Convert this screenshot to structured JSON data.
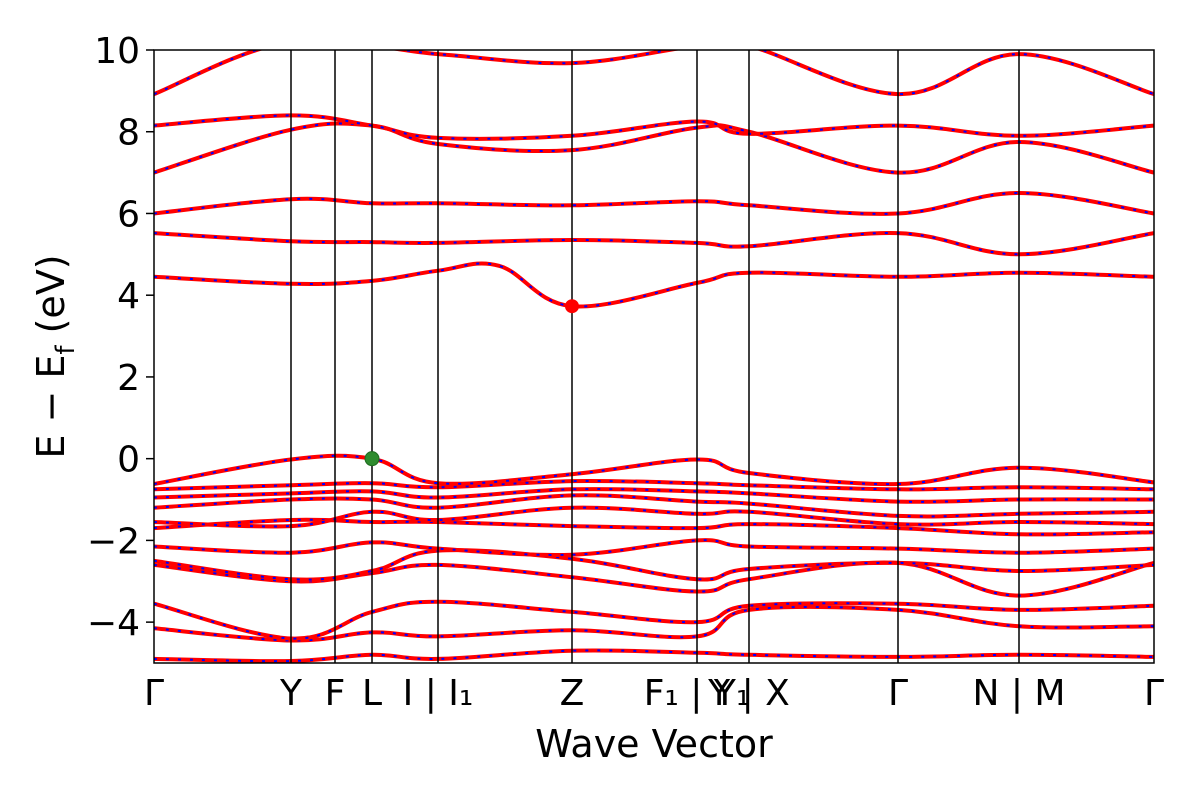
{
  "chart_data": {
    "type": "line",
    "title": "",
    "xlabel": "Wave Vector",
    "ylabel": "E − E_f (eV)",
    "ylim": [
      -5,
      10
    ],
    "yticks": [
      -4,
      -2,
      0,
      2,
      4,
      6,
      8,
      10
    ],
    "ytick_labels": [
      "−4",
      "−2",
      "0",
      "2",
      "4",
      "6",
      "8",
      "10"
    ],
    "x_range": [
      0,
      1
    ],
    "high_symmetry_points": [
      {
        "x": 0.0,
        "label": "Γ"
      },
      {
        "x": 0.137,
        "label": "Y"
      },
      {
        "x": 0.181,
        "label": "F"
      },
      {
        "x": 0.218,
        "label": "L"
      },
      {
        "x": 0.284,
        "label": "I | I₁"
      },
      {
        "x": 0.418,
        "label": "Z"
      },
      {
        "x": 0.543,
        "label": "F₁ | Y₁"
      },
      {
        "x": 0.595,
        "label": "Y | X"
      },
      {
        "x": 0.744,
        "label": "Γ"
      },
      {
        "x": 0.865,
        "label": "N | M"
      },
      {
        "x": 1.0,
        "label": "Γ"
      }
    ],
    "vbm_marker": {
      "x": 0.218,
      "y": 0.0,
      "color": "#2e8b2e"
    },
    "cbm_marker": {
      "x": 0.418,
      "y": 3.73,
      "color": "#ff0000"
    },
    "series": [
      {
        "color": "#ff0000",
        "style": "solid"
      },
      {
        "color": "#0000ff",
        "style": "dotted"
      }
    ],
    "bands": [
      {
        "x": [
          0,
          0.137,
          0.218,
          0.284,
          0.418,
          0.543,
          0.595,
          0.744,
          0.865,
          1.0
        ],
        "y": [
          -4.9,
          -4.95,
          -4.8,
          -4.9,
          -4.7,
          -4.75,
          -4.8,
          -4.85,
          -4.8,
          -4.85
        ]
      },
      {
        "x": [
          0,
          0.137,
          0.218,
          0.284,
          0.418,
          0.543,
          0.595,
          0.744,
          0.865,
          1.0
        ],
        "y": [
          -4.15,
          -4.45,
          -4.25,
          -4.35,
          -4.2,
          -4.35,
          -3.7,
          -3.7,
          -4.1,
          -4.1
        ]
      },
      {
        "x": [
          0,
          0.137,
          0.218,
          0.284,
          0.418,
          0.543,
          0.595,
          0.744,
          0.865,
          1.0
        ],
        "y": [
          -3.55,
          -4.4,
          -3.75,
          -3.5,
          -3.75,
          -4.0,
          -3.6,
          -3.55,
          -3.7,
          -3.6
        ]
      },
      {
        "x": [
          0,
          0.137,
          0.218,
          0.284,
          0.418,
          0.543,
          0.595,
          0.744,
          0.865,
          1.0
        ],
        "y": [
          -2.6,
          -3.0,
          -2.8,
          -2.6,
          -2.9,
          -3.25,
          -2.95,
          -2.55,
          -3.35,
          -2.55
        ]
      },
      {
        "x": [
          0,
          0.137,
          0.218,
          0.284,
          0.418,
          0.543,
          0.595,
          0.744,
          0.865,
          1.0
        ],
        "y": [
          -2.5,
          -2.95,
          -2.75,
          -2.25,
          -2.45,
          -2.95,
          -2.7,
          -2.55,
          -2.75,
          -2.6
        ]
      },
      {
        "x": [
          0,
          0.137,
          0.218,
          0.284,
          0.418,
          0.543,
          0.595,
          0.744,
          0.865,
          1.0
        ],
        "y": [
          -2.15,
          -2.3,
          -2.05,
          -2.2,
          -2.35,
          -2.0,
          -2.15,
          -2.2,
          -2.3,
          -2.2
        ]
      },
      {
        "x": [
          0,
          0.137,
          0.218,
          0.284,
          0.418,
          0.543,
          0.595,
          0.744,
          0.865,
          1.0
        ],
        "y": [
          -1.7,
          -1.5,
          -1.55,
          -1.55,
          -1.65,
          -1.7,
          -1.6,
          -1.7,
          -1.85,
          -1.8
        ]
      },
      {
        "x": [
          0,
          0.137,
          0.218,
          0.284,
          0.418,
          0.543,
          0.595,
          0.744,
          0.865,
          1.0
        ],
        "y": [
          -1.55,
          -1.65,
          -1.3,
          -1.5,
          -1.2,
          -1.35,
          -1.3,
          -1.6,
          -1.55,
          -1.6
        ]
      },
      {
        "x": [
          0,
          0.137,
          0.218,
          0.284,
          0.418,
          0.543,
          0.595,
          0.744,
          0.865,
          1.0
        ],
        "y": [
          -1.2,
          -1.0,
          -1.0,
          -1.2,
          -0.9,
          -1.05,
          -1.1,
          -1.4,
          -1.35,
          -1.3
        ]
      },
      {
        "x": [
          0,
          0.137,
          0.218,
          0.284,
          0.418,
          0.543,
          0.595,
          0.744,
          0.865,
          1.0
        ],
        "y": [
          -0.95,
          -0.85,
          -0.8,
          -0.95,
          -0.75,
          -0.8,
          -0.85,
          -1.05,
          -1.0,
          -1.0
        ]
      },
      {
        "x": [
          0,
          0.137,
          0.218,
          0.284,
          0.418,
          0.543,
          0.595,
          0.744,
          0.865,
          1.0
        ],
        "y": [
          -0.75,
          -0.65,
          -0.6,
          -0.7,
          -0.55,
          -0.6,
          -0.65,
          -0.75,
          -0.7,
          -0.75
        ]
      },
      {
        "x": [
          0,
          0.137,
          0.218,
          0.284,
          0.418,
          0.543,
          0.595,
          0.744,
          0.865,
          1.0
        ],
        "y": [
          -0.62,
          -0.02,
          0.0,
          -0.6,
          -0.38,
          -0.02,
          -0.35,
          -0.62,
          -0.22,
          -0.58
        ]
      },
      {
        "x": [
          0,
          0.137,
          0.218,
          0.284,
          0.345,
          0.418,
          0.543,
          0.595,
          0.744,
          0.865,
          1.0
        ],
        "y": [
          4.45,
          4.28,
          4.35,
          4.6,
          4.72,
          3.73,
          4.3,
          4.55,
          4.45,
          4.55,
          4.45
        ]
      },
      {
        "x": [
          0,
          0.137,
          0.218,
          0.284,
          0.418,
          0.543,
          0.595,
          0.744,
          0.865,
          1.0
        ],
        "y": [
          5.52,
          5.32,
          5.3,
          5.28,
          5.35,
          5.28,
          5.2,
          5.52,
          5.0,
          5.52
        ]
      },
      {
        "x": [
          0,
          0.137,
          0.218,
          0.284,
          0.418,
          0.543,
          0.595,
          0.744,
          0.865,
          1.0
        ],
        "y": [
          6.0,
          6.35,
          6.25,
          6.25,
          6.2,
          6.3,
          6.2,
          6.0,
          6.5,
          6.0
        ]
      },
      {
        "x": [
          0,
          0.137,
          0.218,
          0.284,
          0.418,
          0.543,
          0.595,
          0.744,
          0.865,
          1.0
        ],
        "y": [
          7.0,
          8.05,
          8.15,
          7.7,
          7.55,
          8.1,
          8.0,
          7.0,
          7.75,
          7.0
        ]
      },
      {
        "x": [
          0,
          0.137,
          0.218,
          0.284,
          0.418,
          0.543,
          0.595,
          0.744,
          0.865,
          1.0
        ],
        "y": [
          8.15,
          8.4,
          8.15,
          7.85,
          7.9,
          8.25,
          7.95,
          8.15,
          7.9,
          8.15
        ]
      },
      {
        "x": [
          0,
          0.137,
          0.284,
          0.418,
          0.543,
          0.595,
          0.744,
          0.865,
          1.0
        ],
        "y": [
          8.92,
          10.2,
          9.9,
          9.68,
          10.1,
          10.1,
          8.92,
          9.9,
          8.92
        ]
      }
    ]
  }
}
